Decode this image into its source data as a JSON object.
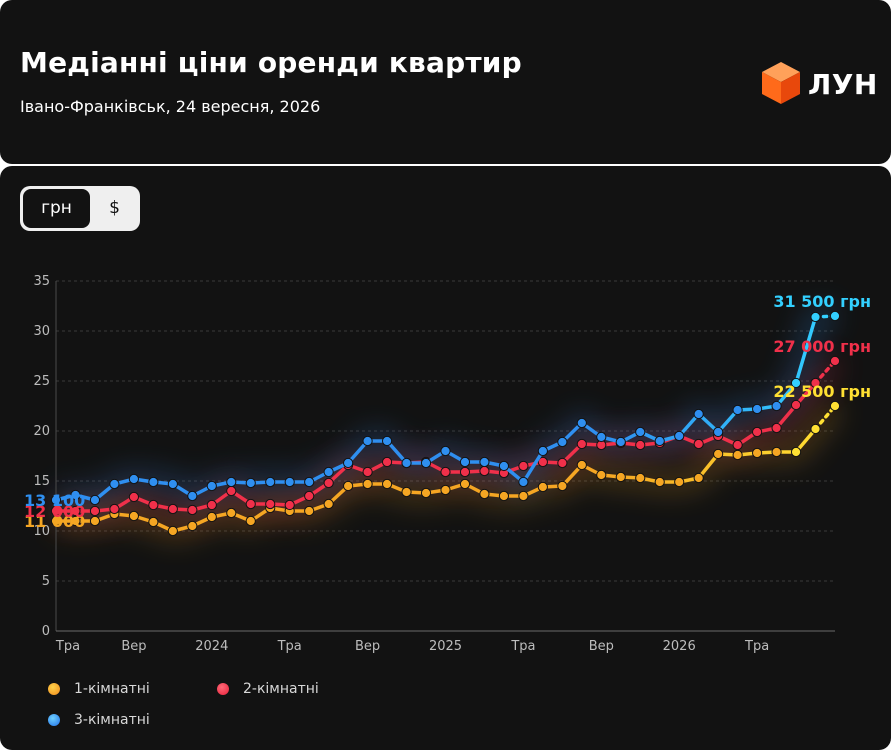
{
  "header": {
    "title": "Медіанні ціни оренди квартир",
    "subtitle": "Івано-Франківськ, 24 вересня, 2026",
    "logo_text": "ЛУН"
  },
  "toggle": {
    "active": "грн",
    "inactive": "$"
  },
  "legend": [
    {
      "label": "1-кімнатні",
      "color": "#f5a623"
    },
    {
      "label": "2-кімнатні",
      "color": "#f0304a"
    },
    {
      "label": "3-кімнатні",
      "color": "#2f8ff0"
    }
  ],
  "chart_data": {
    "type": "line",
    "title": "Медіанні ціни оренди квартир",
    "ylim": [
      0,
      35
    ],
    "yticks": [
      "0",
      "5",
      "10",
      "15",
      "20",
      "25",
      "30",
      "35"
    ],
    "grid": true,
    "x_tick_labels": [
      {
        "i": 0,
        "label": "Тра"
      },
      {
        "i": 4,
        "label": "Вер"
      },
      {
        "i": 8,
        "label": "2024"
      },
      {
        "i": 12,
        "label": "Тра"
      },
      {
        "i": 16,
        "label": "Вер"
      },
      {
        "i": 20,
        "label": "2025"
      },
      {
        "i": 24,
        "label": "Тра"
      },
      {
        "i": 28,
        "label": "Вер"
      },
      {
        "i": 32,
        "label": "2026"
      },
      {
        "i": 36,
        "label": "Тра"
      }
    ],
    "series": [
      {
        "name": "1-кімнатні",
        "color": "#f5a623",
        "end_color": "#ffe033",
        "start_label": "11 000",
        "end_label": "22 500 грн",
        "values": [
          11,
          11,
          11,
          11.7,
          11.5,
          10.9,
          10,
          10.5,
          11.4,
          11.8,
          11,
          12.3,
          12,
          12,
          12.7,
          14.5,
          14.7,
          14.7,
          13.9,
          13.8,
          14.1,
          14.7,
          13.7,
          13.5,
          13.5,
          14.4,
          14.5,
          16.6,
          15.6,
          15.4,
          15.3,
          14.9,
          14.9,
          15.3,
          17.7,
          17.6,
          17.8,
          17.9,
          17.9,
          20.2,
          22.5
        ]
      },
      {
        "name": "2-кімнатні",
        "color": "#f0304a",
        "end_color": "#f0304a",
        "start_label": "12 000",
        "end_label": "27 000 грн",
        "values": [
          12,
          12,
          12,
          12.2,
          13.4,
          12.6,
          12.2,
          12.1,
          12.6,
          14,
          12.7,
          12.7,
          12.6,
          13.5,
          14.8,
          16.6,
          15.9,
          16.9,
          16.8,
          16.9,
          15.9,
          15.9,
          16,
          15.8,
          16.5,
          16.9,
          16.8,
          18.7,
          18.6,
          18.8,
          18.6,
          18.8,
          19.5,
          18.7,
          19.5,
          18.6,
          19.9,
          20.3,
          22.6,
          24.8,
          27
        ]
      },
      {
        "name": "3-кімнатні",
        "color": "#2f8ff0",
        "end_color": "#33d0ff",
        "start_label": "13 100",
        "end_label": "31 500 грн",
        "values": [
          13.1,
          13.6,
          13.1,
          14.7,
          15.2,
          14.9,
          14.7,
          13.5,
          14.5,
          14.9,
          14.8,
          14.9,
          14.9,
          14.9,
          15.9,
          16.8,
          19,
          19,
          16.8,
          16.8,
          18,
          16.9,
          16.9,
          16.5,
          14.9,
          18,
          18.9,
          20.8,
          19.4,
          18.9,
          19.9,
          19,
          19.5,
          21.7,
          19.9,
          22.1,
          22.2,
          22.5,
          24.8,
          31.4,
          31.5
        ]
      }
    ]
  }
}
